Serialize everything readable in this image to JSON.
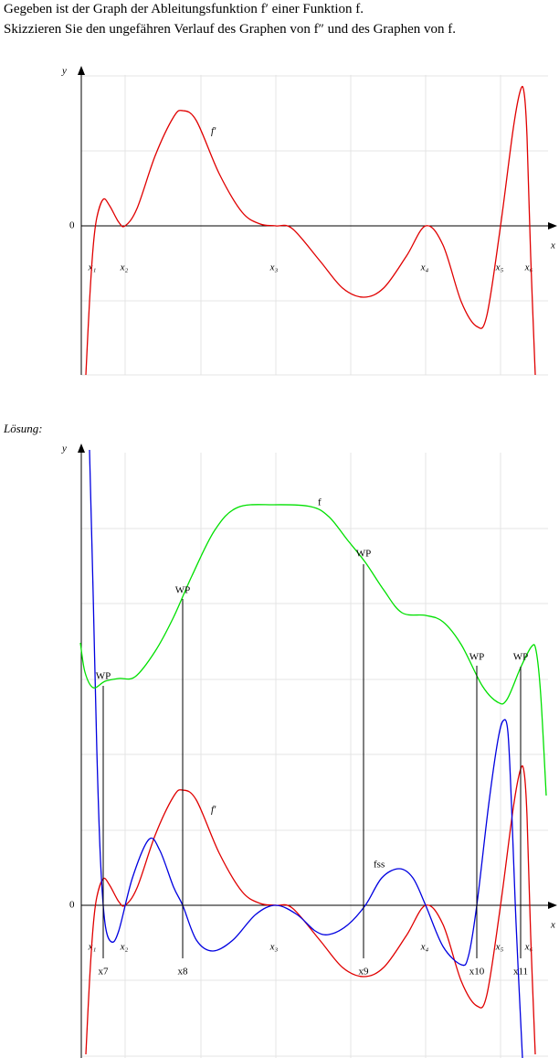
{
  "header": {
    "line1": "Gegeben ist der Graph der Ableitungsfunktion f′ einer Funktion f.",
    "line2": "Skizzieren Sie den ungefähren Verlauf des Graphen von f″ und des Graphen von f."
  },
  "figure1": {
    "y_axis": "y",
    "x_axis": "x",
    "origin": "0",
    "curve_label": "f′",
    "x_labels": [
      "x₁",
      "x₂",
      "x₃",
      "x₄",
      "x₅",
      "x₆"
    ]
  },
  "solution_label": "Lösung:",
  "figure2": {
    "y_axis": "y",
    "x_axis": "x",
    "origin": "0",
    "f_prime_label": "f′",
    "f_label": "f",
    "fss_label": "fss",
    "x_labels": [
      "x₁",
      "x₂",
      "x₃",
      "x₄",
      "x₅",
      "x₆"
    ],
    "wp_labels": [
      "WP",
      "WP",
      "WP",
      "WP",
      "WP"
    ],
    "wp_x_labels": [
      "x7",
      "x8",
      "x9",
      "x10",
      "x11"
    ]
  }
}
